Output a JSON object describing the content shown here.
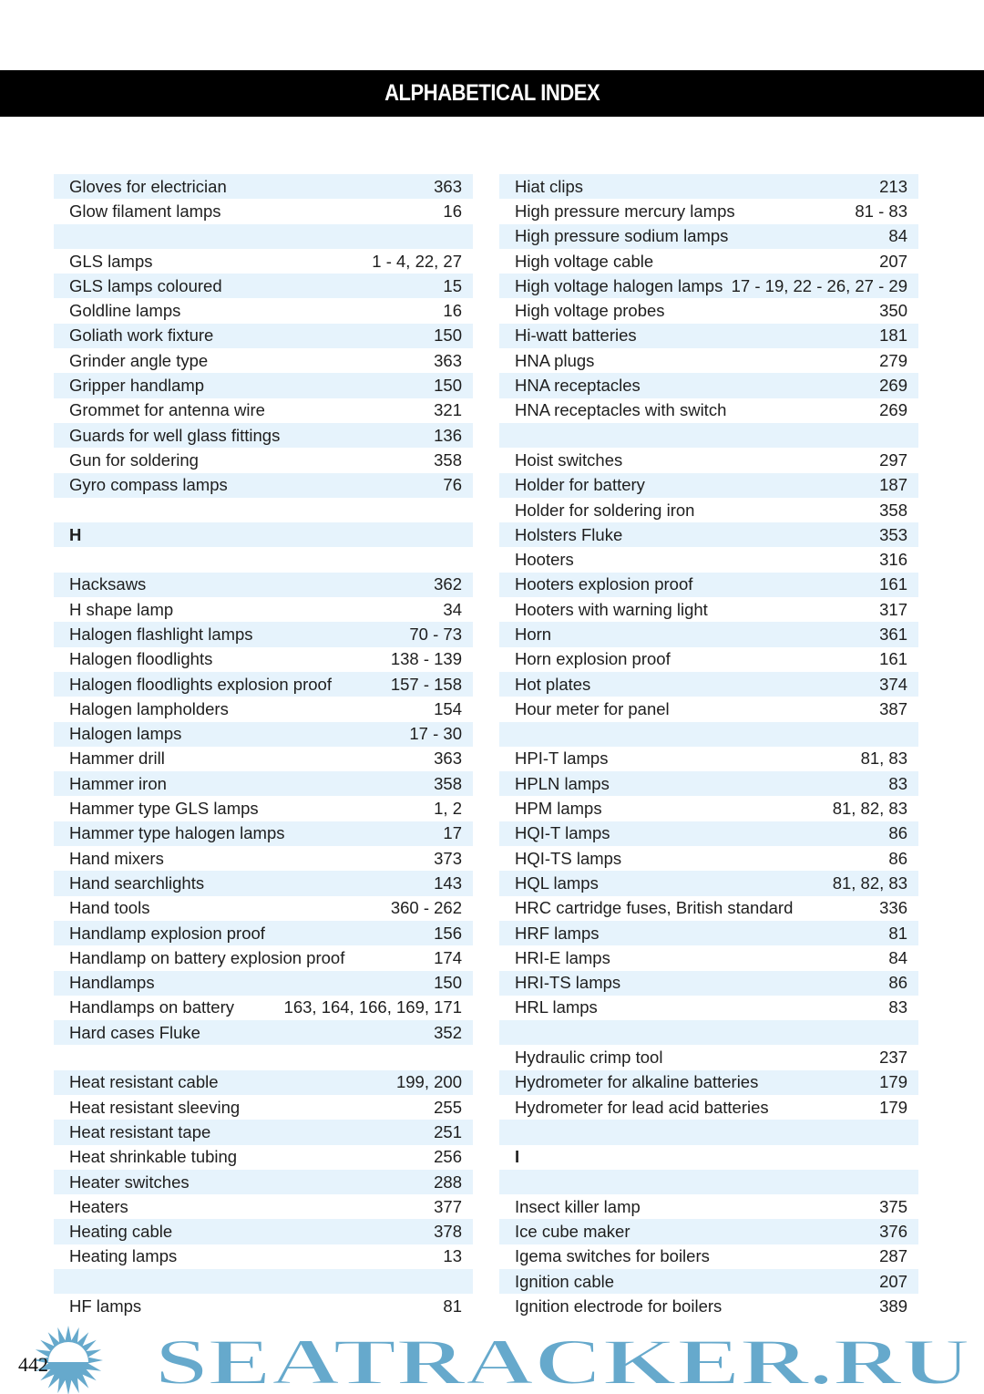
{
  "header": {
    "title": "ALPHABETICAL INDEX"
  },
  "left": [
    {
      "term": "Gloves for electrician",
      "pages": "363"
    },
    {
      "term": "Glow filament lamps",
      "pages": "16"
    },
    {
      "term": "",
      "pages": ""
    },
    {
      "term": "GLS lamps",
      "pages": "1 - 4, 22, 27"
    },
    {
      "term": "GLS lamps coloured",
      "pages": "15"
    },
    {
      "term": "Goldline lamps",
      "pages": "16"
    },
    {
      "term": "Goliath work fixture",
      "pages": "150"
    },
    {
      "term": "Grinder angle type",
      "pages": "363"
    },
    {
      "term": "Gripper handlamp",
      "pages": "150"
    },
    {
      "term": "Grommet for antenna wire",
      "pages": "321"
    },
    {
      "term": "Guards for well glass fittings",
      "pages": "136"
    },
    {
      "term": "Gun for soldering",
      "pages": "358"
    },
    {
      "term": "Gyro compass lamps",
      "pages": "76"
    },
    {
      "term": "",
      "pages": ""
    },
    {
      "letter": "H"
    },
    {
      "term": "",
      "pages": ""
    },
    {
      "term": "Hacksaws",
      "pages": "362"
    },
    {
      "term": "H shape lamp",
      "pages": "34"
    },
    {
      "term": "Halogen flashlight lamps",
      "pages": "70 - 73"
    },
    {
      "term": "Halogen floodlights",
      "pages": "138 - 139"
    },
    {
      "term": "Halogen floodlights explosion proof",
      "pages": "157 - 158"
    },
    {
      "term": "Halogen lampholders",
      "pages": "154"
    },
    {
      "term": "Halogen lamps",
      "pages": "17 - 30"
    },
    {
      "term": "Hammer drill",
      "pages": "363"
    },
    {
      "term": "Hammer iron",
      "pages": "358"
    },
    {
      "term": "Hammer type GLS lamps",
      "pages": "1, 2"
    },
    {
      "term": "Hammer type halogen lamps",
      "pages": "17"
    },
    {
      "term": "Hand mixers",
      "pages": "373"
    },
    {
      "term": "Hand searchlights",
      "pages": "143"
    },
    {
      "term": "Hand tools",
      "pages": "360 - 262"
    },
    {
      "term": "Handlamp explosion proof",
      "pages": "156"
    },
    {
      "term": "Handlamp on battery explosion proof",
      "pages": "174"
    },
    {
      "term": "Handlamps",
      "pages": "150"
    },
    {
      "term": "Handlamps on battery",
      "pages": "163, 164, 166, 169, 171"
    },
    {
      "term": "Hard cases Fluke",
      "pages": "352"
    },
    {
      "term": "",
      "pages": ""
    },
    {
      "term": "Heat resistant cable",
      "pages": "199, 200"
    },
    {
      "term": "Heat resistant sleeving",
      "pages": "255"
    },
    {
      "term": "Heat resistant tape",
      "pages": "251"
    },
    {
      "term": "Heat shrinkable tubing",
      "pages": "256"
    },
    {
      "term": "Heater switches",
      "pages": "288"
    },
    {
      "term": "Heaters",
      "pages": "377"
    },
    {
      "term": "Heating cable",
      "pages": "378"
    },
    {
      "term": "Heating lamps",
      "pages": "13"
    },
    {
      "term": "",
      "pages": ""
    },
    {
      "term": "HF lamps",
      "pages": "81"
    }
  ],
  "right": [
    {
      "term": "Hiat clips",
      "pages": "213"
    },
    {
      "term": "High pressure mercury lamps",
      "pages": "81 - 83"
    },
    {
      "term": "High pressure sodium lamps",
      "pages": "84"
    },
    {
      "term": "High voltage cable",
      "pages": "207"
    },
    {
      "term": "High voltage halogen lamps",
      "pages": "17 - 19, 22 - 26, 27 - 29"
    },
    {
      "term": "High voltage probes",
      "pages": "350"
    },
    {
      "term": "Hi-watt batteries",
      "pages": "181"
    },
    {
      "term": "HNA plugs",
      "pages": "279"
    },
    {
      "term": "HNA receptacles",
      "pages": "269"
    },
    {
      "term": "HNA receptacles with switch",
      "pages": "269"
    },
    {
      "term": "",
      "pages": ""
    },
    {
      "term": "Hoist switches",
      "pages": "297"
    },
    {
      "term": "Holder for battery",
      "pages": "187"
    },
    {
      "term": "Holder for soldering iron",
      "pages": "358"
    },
    {
      "term": "Holsters Fluke",
      "pages": "353"
    },
    {
      "term": "Hooters",
      "pages": "316"
    },
    {
      "term": "Hooters explosion proof",
      "pages": "161"
    },
    {
      "term": "Hooters with warning light",
      "pages": "317"
    },
    {
      "term": "Horn",
      "pages": "361"
    },
    {
      "term": "Horn explosion proof",
      "pages": "161"
    },
    {
      "term": "Hot plates",
      "pages": "374"
    },
    {
      "term": "Hour meter for panel",
      "pages": "387"
    },
    {
      "term": "",
      "pages": ""
    },
    {
      "term": "HPI-T lamps",
      "pages": "81, 83"
    },
    {
      "term": "HPLN lamps",
      "pages": "83"
    },
    {
      "term": "HPM lamps",
      "pages": "81, 82, 83"
    },
    {
      "term": "HQI-T lamps",
      "pages": "86"
    },
    {
      "term": "HQI-TS lamps",
      "pages": "86"
    },
    {
      "term": "HQL lamps",
      "pages": "81, 82, 83"
    },
    {
      "term": "HRC cartridge fuses, British standard",
      "pages": "336"
    },
    {
      "term": "HRF lamps",
      "pages": "81"
    },
    {
      "term": "HRI-E lamps",
      "pages": "84"
    },
    {
      "term": "HRI-TS lamps",
      "pages": "86"
    },
    {
      "term": "HRL lamps",
      "pages": "83"
    },
    {
      "term": "",
      "pages": ""
    },
    {
      "term": "Hydraulic crimp tool",
      "pages": "237"
    },
    {
      "term": "Hydrometer for alkaline batteries",
      "pages": "179"
    },
    {
      "term": "Hydrometer for lead acid batteries",
      "pages": "179"
    },
    {
      "term": "",
      "pages": ""
    },
    {
      "letter": "I"
    },
    {
      "term": "",
      "pages": ""
    },
    {
      "term": "Insect killer lamp",
      "pages": "375"
    },
    {
      "term": "Ice cube maker",
      "pages": "376"
    },
    {
      "term": "Igema switches for boilers",
      "pages": "287"
    },
    {
      "term": "Ignition cable",
      "pages": "207"
    },
    {
      "term": "Ignition electrode for boilers",
      "pages": "389"
    }
  ],
  "footer": {
    "page_number": "442",
    "watermark": "SEATRACKER.RU",
    "watermark_color": "#66a9cc"
  },
  "colors": {
    "stripe": "#e6f3fc",
    "header_bg": "#000000"
  }
}
